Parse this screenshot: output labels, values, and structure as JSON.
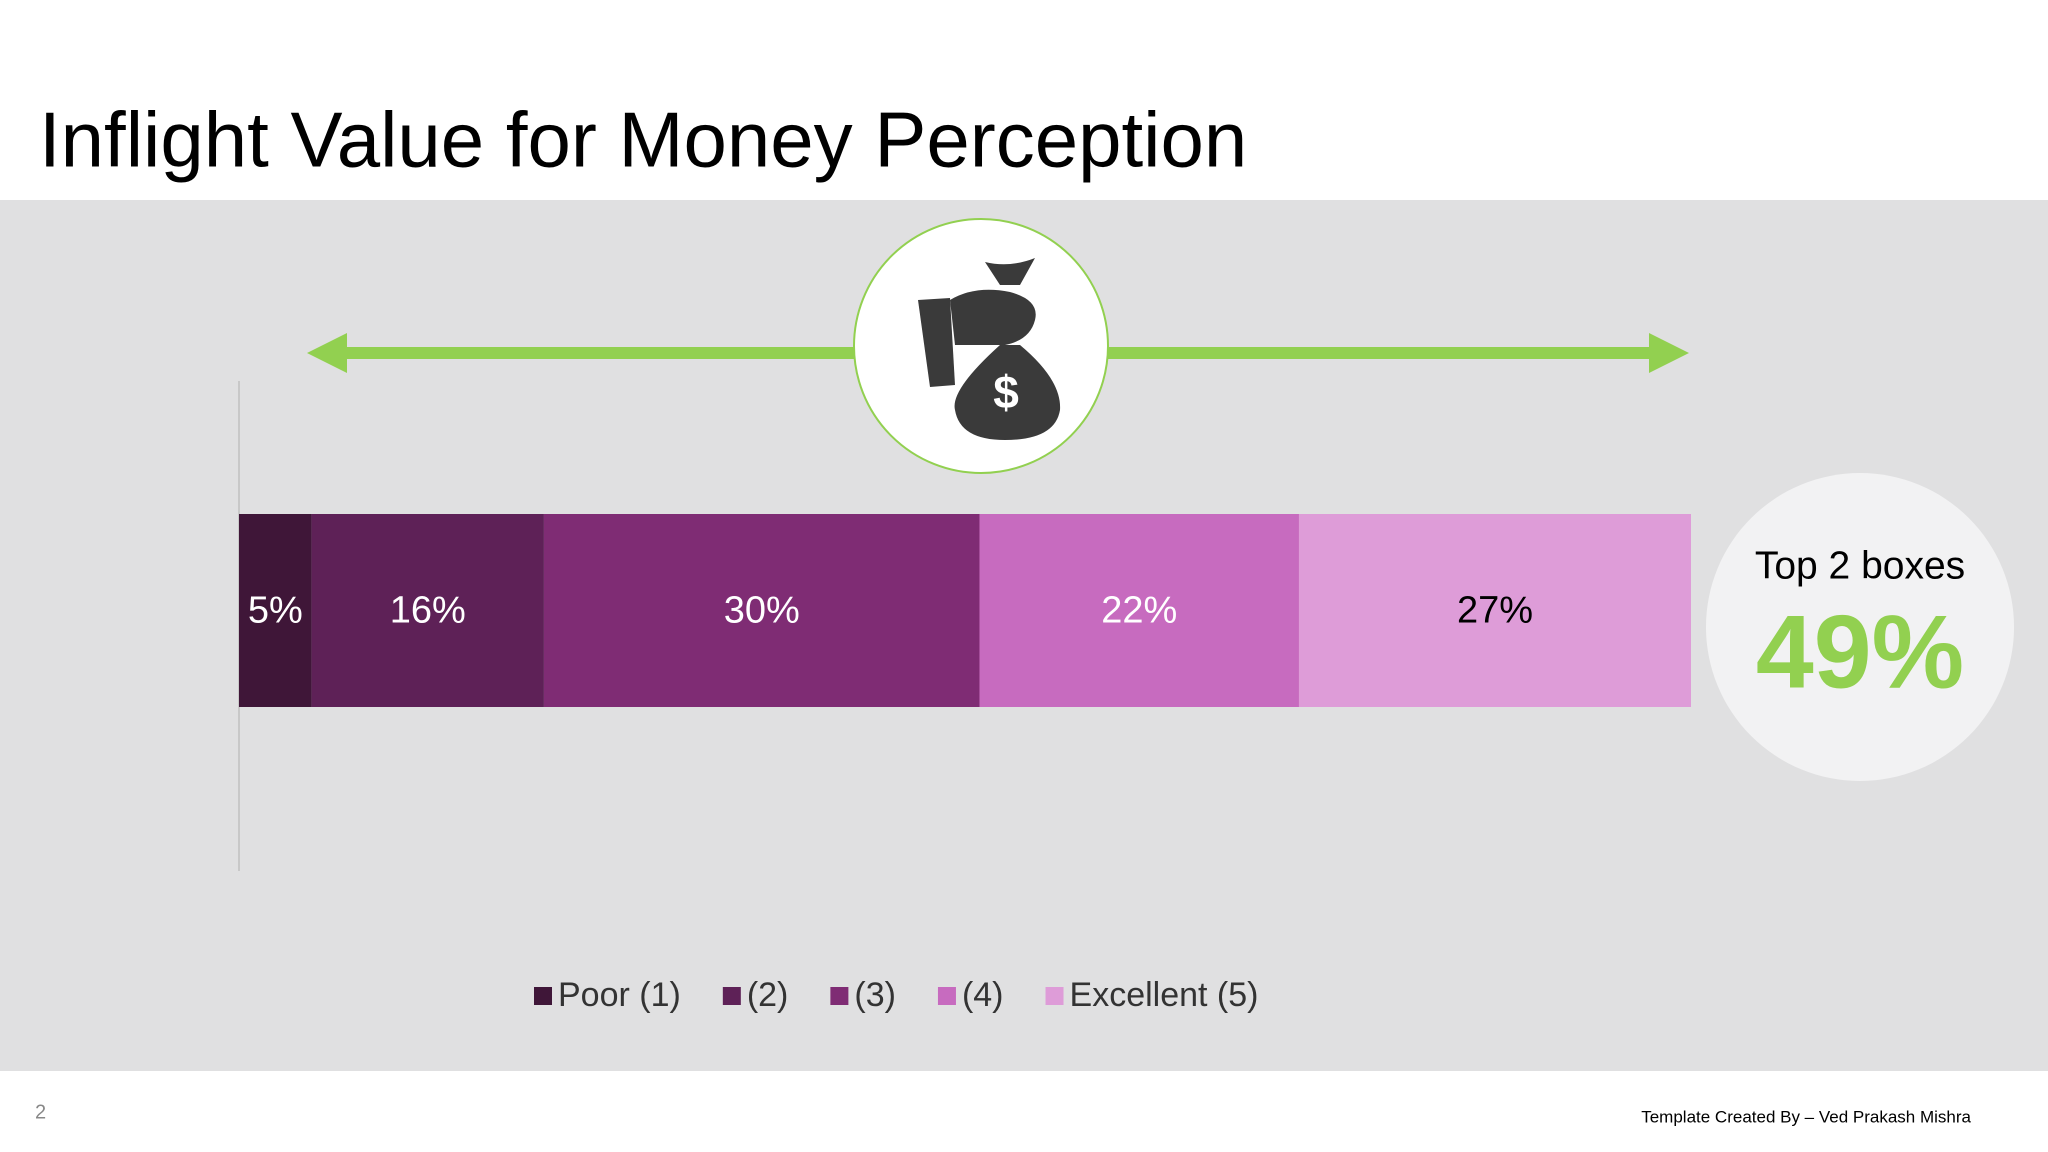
{
  "chart_data": {
    "type": "stacked-bar",
    "orientation": "horizontal",
    "title": "Inflight Value for Money Perception",
    "xlim": [
      0,
      100
    ],
    "series": [
      {
        "name": "Poor (1)",
        "color": "#3f1638",
        "label_color": "#ffffff",
        "values": [
          5
        ],
        "value_labels": [
          "5%"
        ]
      },
      {
        "name": "(2)",
        "color": "#5e2157",
        "label_color": "#ffffff",
        "values": [
          16
        ],
        "value_labels": [
          "16%"
        ]
      },
      {
        "name": "(3)",
        "color": "#7f2c74",
        "label_color": "#ffffff",
        "values": [
          30
        ],
        "value_labels": [
          "30%"
        ]
      },
      {
        "name": "(4)",
        "color": "#c76bbf",
        "label_color": "#ffffff",
        "values": [
          22
        ],
        "value_labels": [
          "22%"
        ]
      },
      {
        "name": "Excellent (5)",
        "color": "#de9cd8",
        "label_color": "#000000",
        "values": [
          27
        ],
        "value_labels": [
          "27%"
        ]
      }
    ],
    "callout": {
      "title": "Top 2 boxes",
      "value_label": "49%"
    }
  },
  "footer": {
    "page": "2",
    "credit": "Template Created By – Ved Prakash Mishra"
  }
}
